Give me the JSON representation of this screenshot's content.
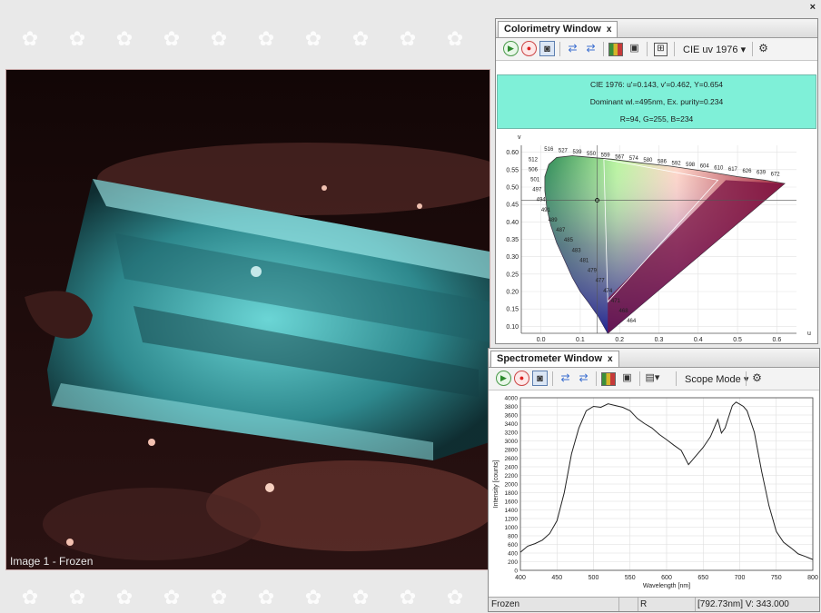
{
  "viewer": {
    "caption": "Image 1 - Frozen"
  },
  "colorimetry": {
    "tab_label": "Colorimetry Window",
    "tab_close": "x",
    "mode_dropdown": "CIE uv 1976",
    "info_line1": "CIE 1976: u'=0.143, v'=0.462, Y=0.654",
    "info_line2": "Dominant wl.=495nm, Ex. purity=0.234",
    "info_line3": "R=94, G=255, B=234",
    "chart": {
      "type": "scatter",
      "x_label": "u",
      "y_label": "v",
      "x_ticks": [
        "0.0",
        "0.1",
        "0.2",
        "0.3",
        "0.4",
        "0.5",
        "0.6"
      ],
      "y_ticks": [
        "0.60",
        "0.55",
        "0.50",
        "0.45",
        "0.40",
        "0.35",
        "0.30",
        "0.25",
        "0.20",
        "0.15",
        "0.10"
      ],
      "point": {
        "u": 0.143,
        "v": 0.462
      },
      "wavelength_labels": [
        "516",
        "527",
        "539",
        "550",
        "559",
        "567",
        "574",
        "580",
        "586",
        "592",
        "598",
        "604",
        "610",
        "617",
        "626",
        "639",
        "672",
        "512",
        "506",
        "501",
        "497",
        "494",
        "491",
        "489",
        "487",
        "485",
        "483",
        "481",
        "479",
        "477",
        "474",
        "471",
        "468",
        "464"
      ]
    }
  },
  "spectrometer": {
    "tab_label": "Spectrometer Window",
    "tab_close": "x",
    "mode_dropdown": "Scope Mode",
    "status_left": "Frozen",
    "status_mid": "R",
    "status_right": "[792.73nm] V: 343.000",
    "chart_data": {
      "type": "line",
      "xlabel": "Wavelength [nm]",
      "ylabel": "Intensity [counts]",
      "xlim": [
        400,
        800
      ],
      "ylim": [
        0,
        4000
      ],
      "x_ticks": [
        "400",
        "450",
        "500",
        "550",
        "600",
        "650",
        "700",
        "750",
        "800"
      ],
      "y_ticks": [
        "0",
        "200",
        "400",
        "600",
        "800",
        "1000",
        "1200",
        "1400",
        "1600",
        "1800",
        "2000",
        "2200",
        "2400",
        "2600",
        "2800",
        "3000",
        "3200",
        "3400",
        "3600",
        "3800",
        "4000"
      ],
      "series": [
        {
          "x": [
            400,
            410,
            420,
            430,
            440,
            450,
            460,
            470,
            480,
            490,
            500,
            510,
            520,
            530,
            540,
            550,
            560,
            570,
            580,
            590,
            600,
            610,
            620,
            630,
            640,
            650,
            660,
            670,
            675,
            680,
            685,
            690,
            695,
            700,
            705,
            710,
            715,
            720,
            730,
            740,
            750,
            760,
            770,
            780,
            790,
            800
          ],
          "y": [
            420,
            560,
            620,
            700,
            850,
            1150,
            1800,
            2700,
            3300,
            3700,
            3800,
            3780,
            3860,
            3820,
            3780,
            3700,
            3520,
            3400,
            3300,
            3150,
            3030,
            2900,
            2780,
            2450,
            2650,
            2850,
            3100,
            3500,
            3180,
            3300,
            3560,
            3820,
            3900,
            3850,
            3800,
            3700,
            3450,
            3200,
            2300,
            1500,
            900,
            650,
            520,
            380,
            320,
            250
          ]
        }
      ]
    }
  },
  "icons": {
    "play": "play-icon",
    "record": "record-icon",
    "camera": "camera-icon",
    "gear": "gear-icon"
  },
  "colors": {
    "info_bg": "#7ff0d8",
    "plot_line": "#222222"
  }
}
